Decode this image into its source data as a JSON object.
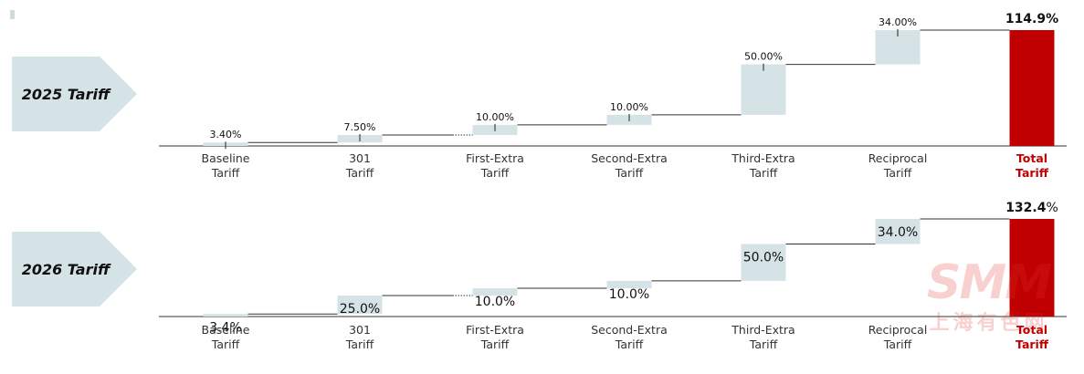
{
  "chart_data": [
    {
      "type": "bar",
      "subtype": "waterfall",
      "tag": "2025 Tariff",
      "categories": [
        [
          "Baseline",
          "Tariff"
        ],
        [
          "301",
          "Tariff"
        ],
        [
          "First-Extra",
          "Tariff"
        ],
        [
          "Second-Extra",
          "Tariff"
        ],
        [
          "Third-Extra",
          "Tariff"
        ],
        [
          "Reciprocal",
          "Tariff"
        ],
        [
          "Total",
          "Tariff"
        ]
      ],
      "values": [
        3.4,
        7.5,
        10.0,
        10.0,
        50.0,
        34.0,
        114.9
      ],
      "value_labels": [
        "3.40%",
        "7.50%",
        "10.00%",
        "10.00%",
        "50.00%",
        "34.00%",
        "114.9%"
      ],
      "ylim": [
        0,
        114.9
      ],
      "legend": "none",
      "grid": false
    },
    {
      "type": "bar",
      "subtype": "waterfall",
      "tag": "2026 Tariff",
      "categories": [
        [
          "Baseline",
          "Tariff"
        ],
        [
          "301",
          "Tariff"
        ],
        [
          "First-Extra",
          "Tariff"
        ],
        [
          "Second-Extra",
          "Tariff"
        ],
        [
          "Third-Extra",
          "Tariff"
        ],
        [
          "Reciprocal",
          "Tariff"
        ],
        [
          "Total",
          "Tariff"
        ]
      ],
      "values": [
        3.4,
        25.0,
        10.0,
        10.0,
        50.0,
        34.0,
        132.4
      ],
      "value_labels": [
        "3.4%",
        "25.0%",
        "10.0%",
        "10.0%",
        "50.0%",
        "34.0%",
        "132.4%"
      ],
      "ylim": [
        0,
        132.4
      ],
      "legend": "none",
      "grid": false
    }
  ],
  "colors": {
    "step_bar": "#d5e3e6",
    "total_bar": "#c00000",
    "total_label": "#c00000",
    "tag_arrow": "#d5e3e6",
    "connector": "#333333"
  },
  "watermark": {
    "logo_text": "SMM",
    "subtitle": "上海有色网"
  }
}
